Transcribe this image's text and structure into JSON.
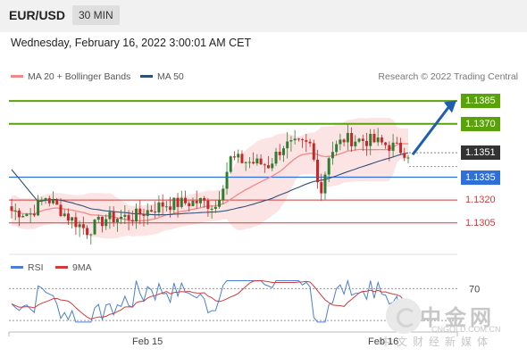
{
  "header": {
    "symbol": "EUR/USD",
    "timeframe": "30 MIN"
  },
  "timestamp": "Wednesday, February 16, 2022 3:00:01 AM CET",
  "research": "Research © 2022 Trading Central",
  "legend": {
    "ma20": "MA 20 + Bollinger Bands",
    "ma50": "MA 50",
    "rsi": "RSI",
    "rsi_ma": "9MA"
  },
  "colors": {
    "resistance": "#5aa20a",
    "support": "#2e6fd8",
    "support_weak": "#d23b3b",
    "bull": "#2e7d32",
    "bear": "#c62828",
    "ma20": "#f08a8a",
    "ma50": "#2e4f7a",
    "bands": "#fde4e4",
    "current": "#333333",
    "arrow": "#1f5fae"
  },
  "watermark": {
    "cn": "中金网",
    "url": "CNGOLD.COM.CN",
    "sub": "中文财经新媒体"
  },
  "chart_data": {
    "type": "candlestick",
    "y_range": [
      1.1292,
      1.1395
    ],
    "x_ticks": [
      "Feb 15",
      "Feb 16"
    ],
    "levels": [
      {
        "label": "1.1385",
        "value": 1.1385,
        "style": "resistance-box"
      },
      {
        "label": "1.1370",
        "value": 1.137,
        "style": "resistance-box"
      },
      {
        "label": "1.1351",
        "value": 1.1351,
        "style": "current"
      },
      {
        "label": "1.1335",
        "value": 1.1335,
        "style": "support-box"
      },
      {
        "label": "1.1320",
        "value": 1.132,
        "style": "support-text"
      },
      {
        "label": "1.1305",
        "value": 1.1305,
        "style": "support-text"
      }
    ],
    "rsi": {
      "level_label": "70",
      "level": 70,
      "range": [
        20,
        85
      ]
    }
  }
}
